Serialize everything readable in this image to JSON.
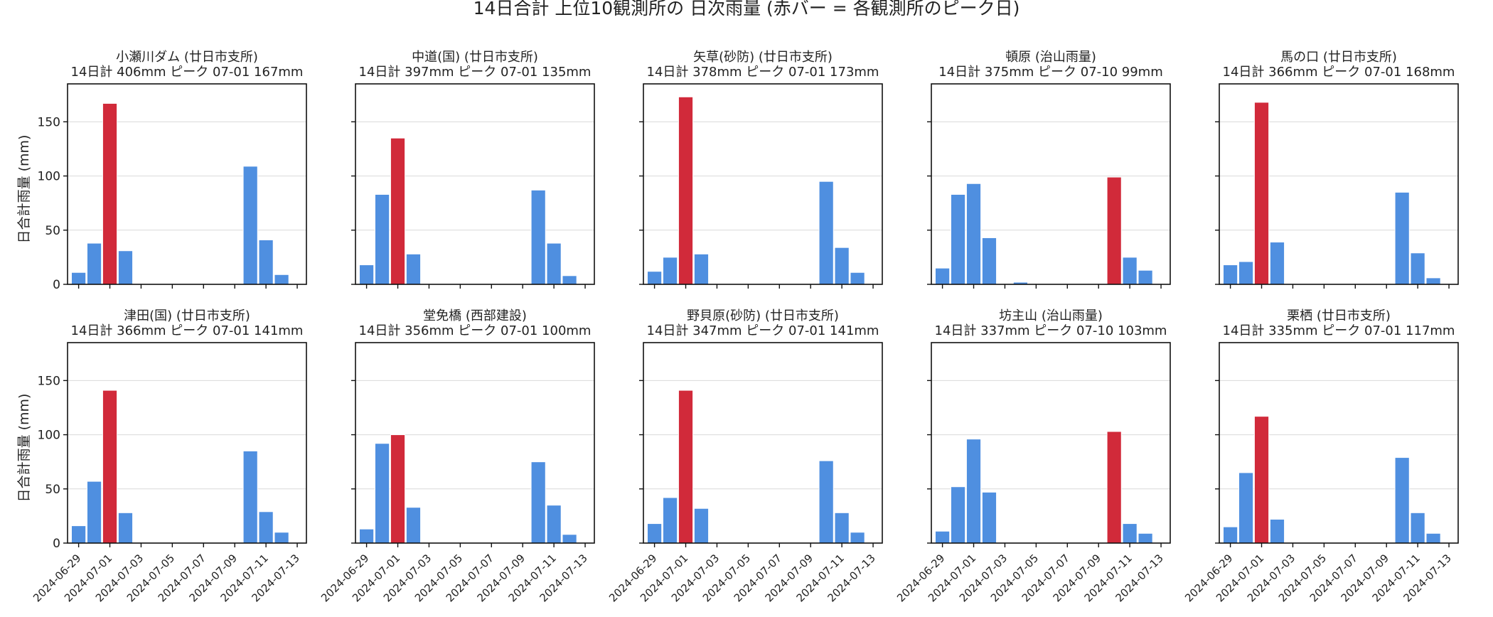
{
  "figure": {
    "title": "14日合計 上位10観測所の 日次雨量 (赤バー = 各観測所のピーク日)",
    "ylabel": "日合計雨量 (mm)"
  },
  "colors": {
    "normal": "#4f8fe0",
    "peak": "#d12a3a"
  },
  "chart_data": [
    {
      "type": "bar",
      "title_line1": "小瀬川ダム (廿日市支所)",
      "title_line2": "14日計 406mm  ピーク 07-01 167mm",
      "categories": [
        "2024-06-29",
        "2024-06-30",
        "2024-07-01",
        "2024-07-02",
        "2024-07-03",
        "2024-07-04",
        "2024-07-05",
        "2024-07-06",
        "2024-07-07",
        "2024-07-08",
        "2024-07-09",
        "2024-07-10",
        "2024-07-11",
        "2024-07-12"
      ],
      "values": [
        11,
        38,
        167,
        31,
        0,
        0,
        0,
        0,
        0,
        0,
        0,
        109,
        41,
        9
      ],
      "peak_index": 2,
      "ylim": [
        0,
        185
      ],
      "yticks": [
        0,
        50,
        100,
        150
      ],
      "xticks": [
        "2024-06-29",
        "2024-07-01",
        "2024-07-03",
        "2024-07-05",
        "2024-07-07",
        "2024-07-09",
        "2024-07-11",
        "2024-07-13"
      ]
    },
    {
      "type": "bar",
      "title_line1": "中道(国) (廿日市支所)",
      "title_line2": "14日計 397mm  ピーク 07-01 135mm",
      "categories": [
        "2024-06-29",
        "2024-06-30",
        "2024-07-01",
        "2024-07-02",
        "2024-07-03",
        "2024-07-04",
        "2024-07-05",
        "2024-07-06",
        "2024-07-07",
        "2024-07-08",
        "2024-07-09",
        "2024-07-10",
        "2024-07-11",
        "2024-07-12"
      ],
      "values": [
        18,
        83,
        135,
        28,
        0,
        0,
        0,
        0,
        0,
        0,
        0,
        87,
        38,
        8
      ],
      "peak_index": 2,
      "ylim": [
        0,
        185
      ],
      "yticks": [
        0,
        50,
        100,
        150
      ],
      "xticks": [
        "2024-06-29",
        "2024-07-01",
        "2024-07-03",
        "2024-07-05",
        "2024-07-07",
        "2024-07-09",
        "2024-07-11",
        "2024-07-13"
      ]
    },
    {
      "type": "bar",
      "title_line1": "矢草(砂防) (廿日市支所)",
      "title_line2": "14日計 378mm  ピーク 07-01 173mm",
      "categories": [
        "2024-06-29",
        "2024-06-30",
        "2024-07-01",
        "2024-07-02",
        "2024-07-03",
        "2024-07-04",
        "2024-07-05",
        "2024-07-06",
        "2024-07-07",
        "2024-07-08",
        "2024-07-09",
        "2024-07-10",
        "2024-07-11",
        "2024-07-12"
      ],
      "values": [
        12,
        25,
        173,
        28,
        0,
        0,
        0,
        0,
        0,
        0,
        0,
        95,
        34,
        11
      ],
      "peak_index": 2,
      "ylim": [
        0,
        185
      ],
      "yticks": [
        0,
        50,
        100,
        150
      ],
      "xticks": [
        "2024-06-29",
        "2024-07-01",
        "2024-07-03",
        "2024-07-05",
        "2024-07-07",
        "2024-07-09",
        "2024-07-11",
        "2024-07-13"
      ]
    },
    {
      "type": "bar",
      "title_line1": "頓原 (治山雨量)",
      "title_line2": "14日計 375mm  ピーク 07-10 99mm",
      "categories": [
        "2024-06-29",
        "2024-06-30",
        "2024-07-01",
        "2024-07-02",
        "2024-07-03",
        "2024-07-04",
        "2024-07-05",
        "2024-07-06",
        "2024-07-07",
        "2024-07-08",
        "2024-07-09",
        "2024-07-10",
        "2024-07-11",
        "2024-07-12"
      ],
      "values": [
        15,
        83,
        93,
        43,
        0,
        2,
        0,
        0,
        0,
        0,
        0,
        99,
        25,
        13
      ],
      "peak_index": 11,
      "ylim": [
        0,
        185
      ],
      "yticks": [
        0,
        50,
        100,
        150
      ],
      "xticks": [
        "2024-06-29",
        "2024-07-01",
        "2024-07-03",
        "2024-07-05",
        "2024-07-07",
        "2024-07-09",
        "2024-07-11",
        "2024-07-13"
      ]
    },
    {
      "type": "bar",
      "title_line1": "馬の口 (廿日市支所)",
      "title_line2": "14日計 366mm  ピーク 07-01 168mm",
      "categories": [
        "2024-06-29",
        "2024-06-30",
        "2024-07-01",
        "2024-07-02",
        "2024-07-03",
        "2024-07-04",
        "2024-07-05",
        "2024-07-06",
        "2024-07-07",
        "2024-07-08",
        "2024-07-09",
        "2024-07-10",
        "2024-07-11",
        "2024-07-12"
      ],
      "values": [
        18,
        21,
        168,
        39,
        0,
        0,
        0,
        0,
        0,
        0,
        0,
        85,
        29,
        6
      ],
      "peak_index": 2,
      "ylim": [
        0,
        185
      ],
      "yticks": [
        0,
        50,
        100,
        150
      ],
      "xticks": [
        "2024-06-29",
        "2024-07-01",
        "2024-07-03",
        "2024-07-05",
        "2024-07-07",
        "2024-07-09",
        "2024-07-11",
        "2024-07-13"
      ]
    },
    {
      "type": "bar",
      "title_line1": "津田(国) (廿日市支所)",
      "title_line2": "14日計 366mm  ピーク 07-01 141mm",
      "categories": [
        "2024-06-29",
        "2024-06-30",
        "2024-07-01",
        "2024-07-02",
        "2024-07-03",
        "2024-07-04",
        "2024-07-05",
        "2024-07-06",
        "2024-07-07",
        "2024-07-08",
        "2024-07-09",
        "2024-07-10",
        "2024-07-11",
        "2024-07-12"
      ],
      "values": [
        16,
        57,
        141,
        28,
        0,
        0,
        0,
        0,
        0,
        0,
        0,
        85,
        29,
        10
      ],
      "peak_index": 2,
      "ylim": [
        0,
        185
      ],
      "yticks": [
        0,
        50,
        100,
        150
      ],
      "xticks": [
        "2024-06-29",
        "2024-07-01",
        "2024-07-03",
        "2024-07-05",
        "2024-07-07",
        "2024-07-09",
        "2024-07-11",
        "2024-07-13"
      ]
    },
    {
      "type": "bar",
      "title_line1": "堂免橋 (西部建設)",
      "title_line2": "14日計 356mm  ピーク 07-01 100mm",
      "categories": [
        "2024-06-29",
        "2024-06-30",
        "2024-07-01",
        "2024-07-02",
        "2024-07-03",
        "2024-07-04",
        "2024-07-05",
        "2024-07-06",
        "2024-07-07",
        "2024-07-08",
        "2024-07-09",
        "2024-07-10",
        "2024-07-11",
        "2024-07-12"
      ],
      "values": [
        13,
        92,
        100,
        33,
        0,
        0,
        0,
        0,
        0,
        0,
        0,
        75,
        35,
        8
      ],
      "peak_index": 2,
      "ylim": [
        0,
        185
      ],
      "yticks": [
        0,
        50,
        100,
        150
      ],
      "xticks": [
        "2024-06-29",
        "2024-07-01",
        "2024-07-03",
        "2024-07-05",
        "2024-07-07",
        "2024-07-09",
        "2024-07-11",
        "2024-07-13"
      ]
    },
    {
      "type": "bar",
      "title_line1": "野貝原(砂防) (廿日市支所)",
      "title_line2": "14日計 347mm  ピーク 07-01 141mm",
      "categories": [
        "2024-06-29",
        "2024-06-30",
        "2024-07-01",
        "2024-07-02",
        "2024-07-03",
        "2024-07-04",
        "2024-07-05",
        "2024-07-06",
        "2024-07-07",
        "2024-07-08",
        "2024-07-09",
        "2024-07-10",
        "2024-07-11",
        "2024-07-12"
      ],
      "values": [
        18,
        42,
        141,
        32,
        0,
        0,
        0,
        0,
        0,
        0,
        0,
        76,
        28,
        10
      ],
      "peak_index": 2,
      "ylim": [
        0,
        185
      ],
      "yticks": [
        0,
        50,
        100,
        150
      ],
      "xticks": [
        "2024-06-29",
        "2024-07-01",
        "2024-07-03",
        "2024-07-05",
        "2024-07-07",
        "2024-07-09",
        "2024-07-11",
        "2024-07-13"
      ]
    },
    {
      "type": "bar",
      "title_line1": "坊主山 (治山雨量)",
      "title_line2": "14日計 337mm  ピーク 07-10 103mm",
      "categories": [
        "2024-06-29",
        "2024-06-30",
        "2024-07-01",
        "2024-07-02",
        "2024-07-03",
        "2024-07-04",
        "2024-07-05",
        "2024-07-06",
        "2024-07-07",
        "2024-07-08",
        "2024-07-09",
        "2024-07-10",
        "2024-07-11",
        "2024-07-12"
      ],
      "values": [
        11,
        52,
        96,
        47,
        0,
        0,
        0,
        0,
        0,
        0,
        0,
        103,
        18,
        9
      ],
      "peak_index": 11,
      "ylim": [
        0,
        185
      ],
      "yticks": [
        0,
        50,
        100,
        150
      ],
      "xticks": [
        "2024-06-29",
        "2024-07-01",
        "2024-07-03",
        "2024-07-05",
        "2024-07-07",
        "2024-07-09",
        "2024-07-11",
        "2024-07-13"
      ]
    },
    {
      "type": "bar",
      "title_line1": "栗栖 (廿日市支所)",
      "title_line2": "14日計 335mm  ピーク 07-01 117mm",
      "categories": [
        "2024-06-29",
        "2024-06-30",
        "2024-07-01",
        "2024-07-02",
        "2024-07-03",
        "2024-07-04",
        "2024-07-05",
        "2024-07-06",
        "2024-07-07",
        "2024-07-08",
        "2024-07-09",
        "2024-07-10",
        "2024-07-11",
        "2024-07-12"
      ],
      "values": [
        15,
        65,
        117,
        22,
        0,
        0,
        0,
        0,
        0,
        0,
        0,
        79,
        28,
        9
      ],
      "peak_index": 2,
      "ylim": [
        0,
        185
      ],
      "yticks": [
        0,
        50,
        100,
        150
      ],
      "xticks": [
        "2024-06-29",
        "2024-07-01",
        "2024-07-03",
        "2024-07-05",
        "2024-07-07",
        "2024-07-09",
        "2024-07-11",
        "2024-07-13"
      ]
    }
  ]
}
